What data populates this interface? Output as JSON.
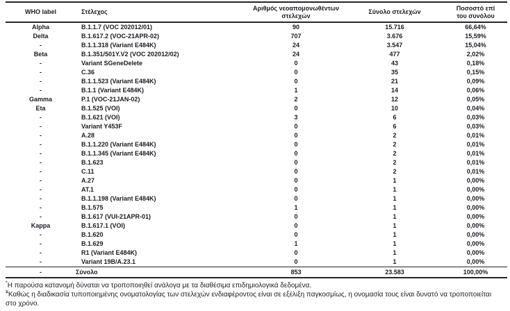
{
  "table": {
    "columns": [
      {
        "name": "who-label",
        "lines": [
          "WHO label"
        ]
      },
      {
        "name": "strain",
        "lines": [
          "Στέλεχος"
        ]
      },
      {
        "name": "new-isolates",
        "lines": [
          "Αριθμός νεοαπομονωθέντων",
          "στελεχών"
        ]
      },
      {
        "name": "total-isolates",
        "lines": [
          "Σύνολο στελεχών"
        ]
      },
      {
        "name": "percentage",
        "lines": [
          "Ποσοστό επί",
          "του συνόλου"
        ]
      }
    ],
    "rows": [
      [
        "Alpha",
        "B.1.1.7 (VOC 202012/01)",
        "90",
        "15.716",
        "66,64%"
      ],
      [
        "Delta",
        "B.1.617.2 (VOC-21APR-02)",
        "707",
        "3.676",
        "15,59%"
      ],
      [
        "-",
        "B.1.1.318 (Variant E484K)",
        "24",
        "3.547",
        "15,04%"
      ],
      [
        "Beta",
        "B.1.351/501Y.V2 (VOC 202012/02)",
        "24",
        "477",
        "2,02%"
      ],
      [
        "-",
        "Variant SGeneDelete",
        "0",
        "43",
        "0,18%"
      ],
      [
        "-",
        "C.36",
        "0",
        "35",
        "0,15%"
      ],
      [
        "-",
        "B.1.1.523 (Variant E484K)",
        "0",
        "21",
        "0,09%"
      ],
      [
        "-",
        "B.1.1 (Variant E484K)",
        "1",
        "14",
        "0,06%"
      ],
      [
        "Gamma",
        "P.1 (VOC-21JAN-02)",
        "2",
        "12",
        "0,05%"
      ],
      [
        "Eta",
        "B.1.525 (VOI)",
        "0",
        "10",
        "0,04%"
      ],
      [
        "-",
        "B.1.621 (VOI)",
        "3",
        "6",
        "0,03%"
      ],
      [
        "-",
        "Variant Y453F",
        "0",
        "6",
        "0,03%"
      ],
      [
        "-",
        "A.28",
        "0",
        "2",
        "0,01%"
      ],
      [
        "-",
        "B.1.1.220 (Variant E484K)",
        "0",
        "2",
        "0,01%"
      ],
      [
        "-",
        "B.1.1.345 (Variant E484K)",
        "0",
        "2",
        "0,01%"
      ],
      [
        "-",
        "B.1.623",
        "0",
        "2",
        "0,01%"
      ],
      [
        "-",
        "C.11",
        "0",
        "2",
        "0,01%"
      ],
      [
        "-",
        "A.27",
        "0",
        "1",
        "0,00%"
      ],
      [
        "-",
        "AT.1",
        "0",
        "1",
        "0,00%"
      ],
      [
        "-",
        "B.1.1.198 (Variant E484K)",
        "0",
        "1",
        "0,00%"
      ],
      [
        "-",
        "B.1.575",
        "1",
        "1",
        "0,00%"
      ],
      [
        "-",
        "B.1.617 (VUI-21APR-01)",
        "0",
        "1",
        "0,00%"
      ],
      [
        "Kappa",
        "B.1.617.1 (VOI)",
        "0",
        "1",
        "0,00%"
      ],
      [
        "-",
        "B.1.620",
        "0",
        "1",
        "0,00%"
      ],
      [
        "-",
        "B.1.629",
        "1",
        "1",
        "0,00%"
      ],
      [
        "-",
        "R1 (Variant E484K)",
        "0",
        "1",
        "0,00%"
      ],
      [
        "-",
        "Variant 19B/A.23.1",
        "0",
        "1",
        "0,00%"
      ]
    ],
    "total_row": [
      "-",
      "Σύνολο",
      "853",
      "23.583",
      "100,00%"
    ]
  },
  "footnotes": [
    {
      "marker": "*",
      "text": "Η παρούσα κατανομή δύναται να τροποποιηθεί ανάλογα με τα διαθέσιμα επιδημιολογικά δεδομένα."
    },
    {
      "marker": "¥",
      "text": "Καθώς η διαδικασία τυποποιημένης ονοματολογίας των στελεχών ενδιαφέροντος είναι σε εξέλιξη παγκοσμίως, η ονομασία τους είναι δυνατό να τροποποιείται στο χρόνο."
    }
  ]
}
